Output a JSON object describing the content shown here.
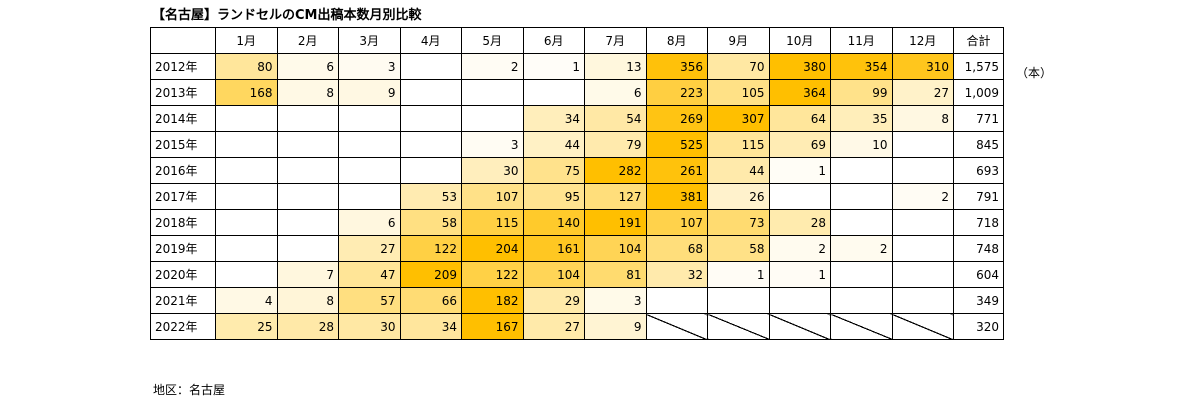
{
  "title": "【名古屋】ランドセルのCM出稿本数月別比較",
  "unit": "（本）",
  "region_label": "地区：名古屋",
  "colors": {
    "scale_low": "#ffffff",
    "scale_high": "#ffbf00",
    "border": "#000000"
  },
  "chart_data": {
    "type": "heatmap",
    "title": "【名古屋】ランドセルのCM出稿本数月別比較",
    "columns": [
      "1月",
      "2月",
      "3月",
      "4月",
      "5月",
      "6月",
      "7月",
      "8月",
      "9月",
      "10月",
      "11月",
      "12月"
    ],
    "total_label": "合計",
    "rows": [
      {
        "year": "2012年",
        "values": [
          80,
          6,
          3,
          null,
          2,
          1,
          13,
          356,
          70,
          380,
          354,
          310
        ],
        "total": "1,575"
      },
      {
        "year": "2013年",
        "values": [
          168,
          8,
          9,
          null,
          null,
          null,
          6,
          223,
          105,
          364,
          99,
          27
        ],
        "total": "1,009"
      },
      {
        "year": "2014年",
        "values": [
          null,
          null,
          null,
          null,
          null,
          34,
          54,
          269,
          307,
          64,
          35,
          8
        ],
        "total": "771"
      },
      {
        "year": "2015年",
        "values": [
          null,
          null,
          null,
          null,
          3,
          44,
          79,
          525,
          115,
          69,
          10,
          null
        ],
        "total": "845"
      },
      {
        "year": "2016年",
        "values": [
          null,
          null,
          null,
          null,
          30,
          75,
          282,
          261,
          44,
          1,
          null,
          null
        ],
        "total": "693"
      },
      {
        "year": "2017年",
        "values": [
          null,
          null,
          null,
          53,
          107,
          95,
          127,
          381,
          26,
          null,
          null,
          2
        ],
        "total": "791"
      },
      {
        "year": "2018年",
        "values": [
          null,
          null,
          6,
          58,
          115,
          140,
          191,
          107,
          73,
          28,
          null,
          null
        ],
        "total": "718"
      },
      {
        "year": "2019年",
        "values": [
          null,
          null,
          27,
          122,
          204,
          161,
          104,
          68,
          58,
          2,
          2,
          null
        ],
        "total": "748"
      },
      {
        "year": "2020年",
        "values": [
          null,
          7,
          47,
          209,
          122,
          104,
          81,
          32,
          1,
          1,
          null,
          null
        ],
        "total": "604"
      },
      {
        "year": "2021年",
        "values": [
          4,
          8,
          57,
          66,
          182,
          29,
          3,
          null,
          null,
          null,
          null,
          null
        ],
        "total": "349"
      },
      {
        "year": "2022年",
        "values": [
          25,
          28,
          30,
          34,
          167,
          27,
          9,
          "n/a",
          "n/a",
          "n/a",
          "n/a",
          "n/a"
        ],
        "total": "320"
      }
    ]
  }
}
